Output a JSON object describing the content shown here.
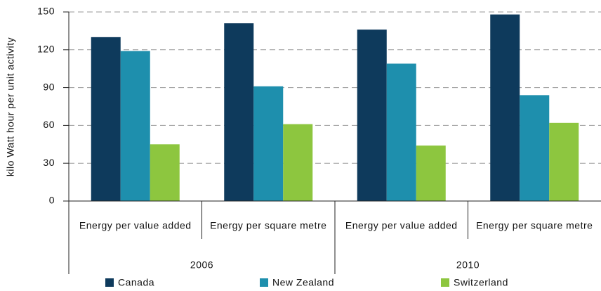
{
  "chart_data": {
    "type": "bar",
    "y_label": "kilo Watt hour per unit activity",
    "categories": [
      "Energy per value added",
      "Energy per square metre",
      "Energy per value added",
      "Energy per square metre"
    ],
    "category_groups": [
      "2006",
      "2010"
    ],
    "series": [
      {
        "name": "Canada",
        "color": "#0e3a5c",
        "values": [
          130,
          141,
          136,
          148
        ]
      },
      {
        "name": "New Zealand",
        "color": "#1e8fad",
        "values": [
          119,
          91,
          109,
          84
        ]
      },
      {
        "name": "Switzerland",
        "color": "#8dc63f",
        "values": [
          45,
          61,
          44,
          62
        ]
      }
    ],
    "ylim": [
      0,
      150
    ],
    "yticks": [
      0,
      30,
      60,
      90,
      120,
      150
    ],
    "grid": true
  }
}
